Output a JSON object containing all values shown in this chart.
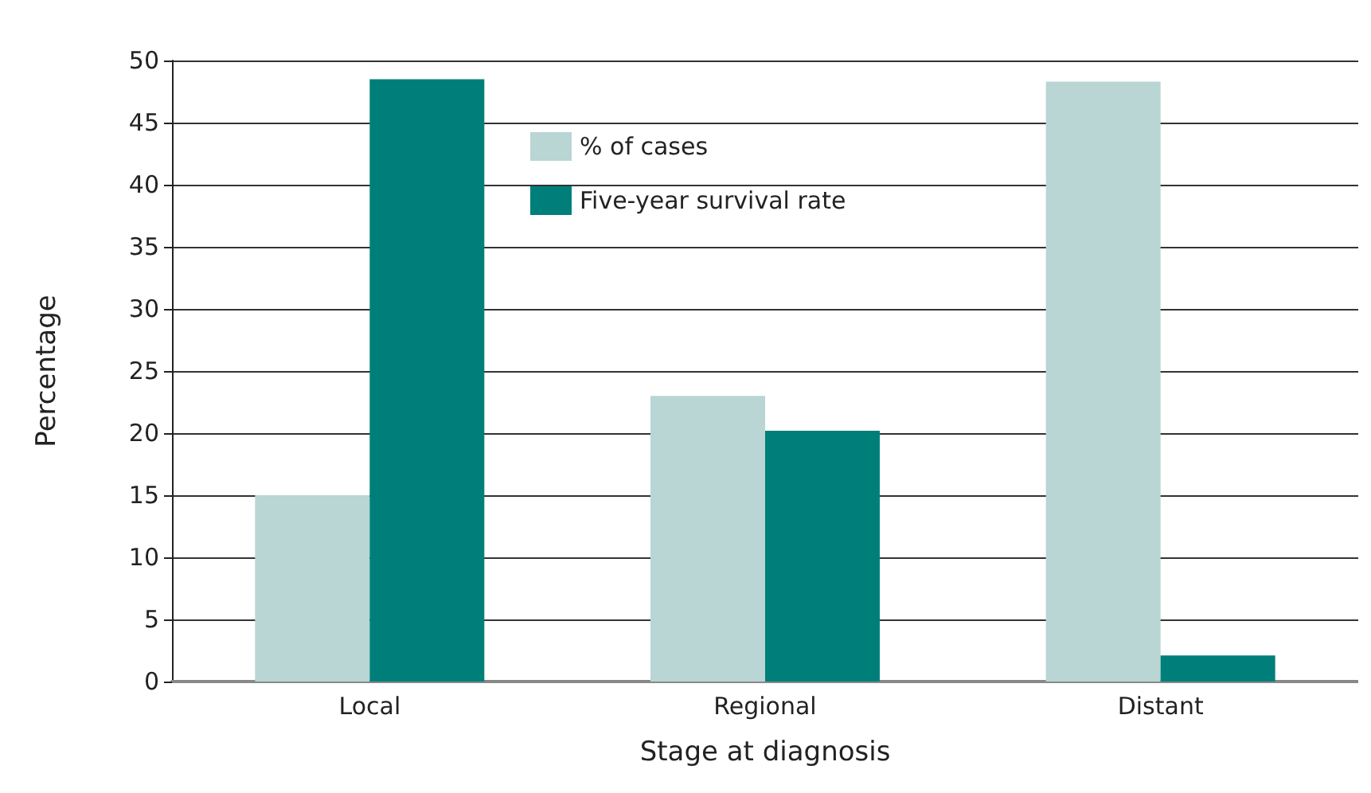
{
  "chart_data": {
    "type": "bar",
    "xlabel": "Stage at diagnosis",
    "ylabel": "Percentage",
    "categories": [
      "Local",
      "Regional",
      "Distant"
    ],
    "series": [
      {
        "name": "% of cases",
        "color": "#b9d5d4",
        "values": [
          15,
          23,
          48.3
        ]
      },
      {
        "name": "Five-year survival rate",
        "color": "#007f7a",
        "values": [
          48.5,
          20.2,
          2.1
        ]
      }
    ],
    "ylim": [
      0,
      50
    ],
    "yticks": [
      0,
      5,
      10,
      15,
      20,
      25,
      30,
      35,
      40,
      45,
      50
    ],
    "grid": "y",
    "legend": "top left"
  }
}
